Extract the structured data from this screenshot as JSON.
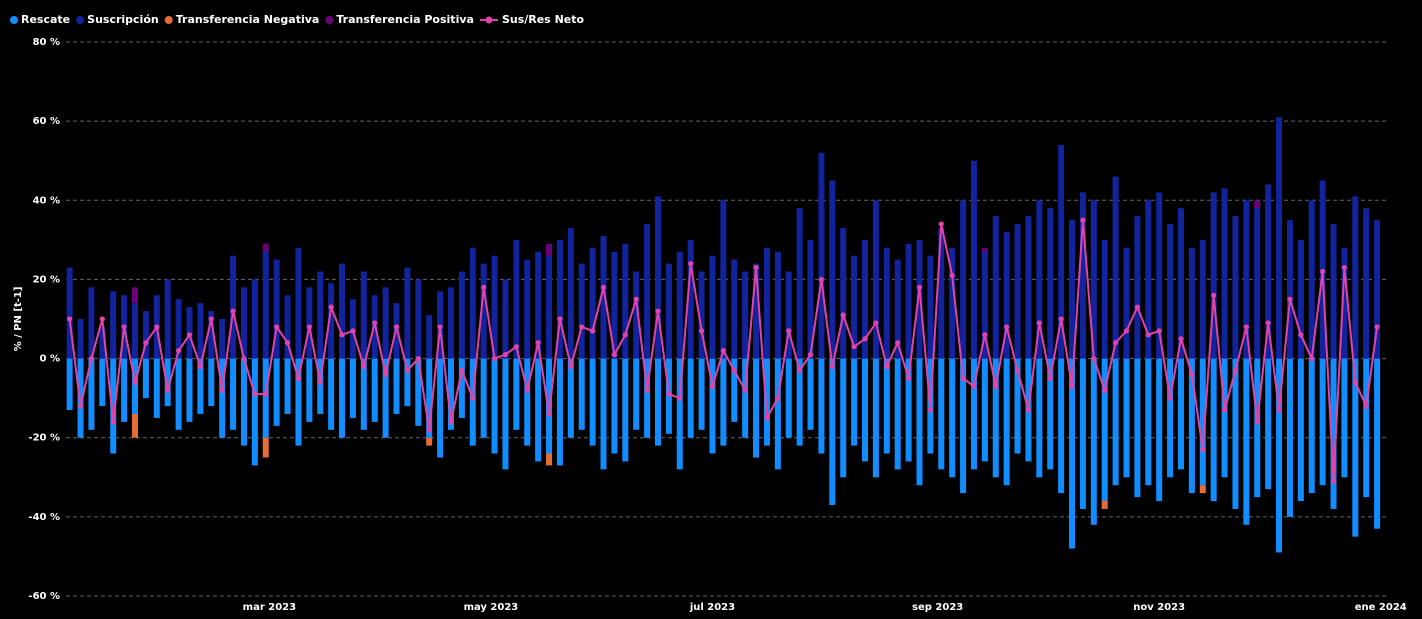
{
  "chart_data": {
    "type": "combo",
    "y_label": "% / PN [t-1]",
    "grid": true,
    "legend": "top-left",
    "xlim": [
      3,
      367
    ],
    "xticks": [
      {
        "value": 59,
        "label": "mar 2023"
      },
      {
        "value": 120,
        "label": "may 2023"
      },
      {
        "value": 181,
        "label": "jul 2023"
      },
      {
        "value": 243,
        "label": "sep 2023"
      },
      {
        "value": 304,
        "label": "nov 2023"
      },
      {
        "value": 365,
        "label": "ene 2024"
      }
    ],
    "ylim": [
      -60,
      80
    ],
    "yticks": [
      {
        "value": -60,
        "label": "-60 %"
      },
      {
        "value": -40,
        "label": "-40 %"
      },
      {
        "value": -20,
        "label": "-20 %"
      },
      {
        "value": 0,
        "label": "0 %"
      },
      {
        "value": 20,
        "label": "20 %"
      },
      {
        "value": 40,
        "label": "40 %"
      },
      {
        "value": 60,
        "label": "60 %"
      },
      {
        "value": 80,
        "label": "80 %"
      }
    ],
    "x": [
      4,
      7,
      10,
      13,
      16,
      19,
      22,
      25,
      28,
      31,
      34,
      37,
      40,
      43,
      46,
      49,
      52,
      55,
      58,
      61,
      64,
      67,
      70,
      73,
      76,
      79,
      82,
      85,
      88,
      91,
      94,
      97,
      100,
      103,
      106,
      109,
      112,
      115,
      118,
      121,
      124,
      127,
      130,
      133,
      136,
      139,
      142,
      145,
      148,
      151,
      154,
      157,
      160,
      163,
      166,
      169,
      172,
      175,
      178,
      181,
      184,
      187,
      190,
      193,
      196,
      199,
      202,
      205,
      208,
      211,
      214,
      217,
      220,
      223,
      226,
      229,
      232,
      235,
      238,
      241,
      244,
      247,
      250,
      253,
      256,
      259,
      262,
      265,
      268,
      271,
      274,
      277,
      280,
      283,
      286,
      289,
      292,
      295,
      298,
      301,
      304,
      307,
      310,
      313,
      316,
      319,
      322,
      325,
      328,
      331,
      334,
      337,
      340,
      343,
      346,
      349,
      352,
      355,
      358,
      361,
      364
    ],
    "series": [
      {
        "name": "Rescate",
        "kind": "bar",
        "color": "#118dff",
        "values": [
          -13,
          -20,
          -18,
          -12,
          -24,
          -16,
          -14,
          -10,
          -15,
          -12,
          -18,
          -16,
          -14,
          -12,
          -20,
          -18,
          -22,
          -27,
          -20,
          -17,
          -14,
          -22,
          -16,
          -14,
          -18,
          -20,
          -15,
          -18,
          -16,
          -20,
          -14,
          -12,
          -17,
          -20,
          -25,
          -18,
          -15,
          -22,
          -20,
          -24,
          -28,
          -18,
          -22,
          -26,
          -24,
          -27,
          -20,
          -18,
          -22,
          -28,
          -24,
          -26,
          -18,
          -20,
          -22,
          -19,
          -28,
          -20,
          -18,
          -24,
          -22,
          -16,
          -20,
          -25,
          -22,
          -28,
          -20,
          -22,
          -18,
          -24,
          -37,
          -30,
          -22,
          -26,
          -30,
          -24,
          -28,
          -26,
          -32,
          -24,
          -28,
          -30,
          -34,
          -28,
          -26,
          -30,
          -32,
          -24,
          -26,
          -30,
          -28,
          -34,
          -48,
          -38,
          -42,
          -36,
          -32,
          -30,
          -35,
          -32,
          -36,
          -30,
          -28,
          -34,
          -32,
          -36,
          -30,
          -38,
          -42,
          -35,
          -33,
          -49,
          -40,
          -36,
          -34,
          -32,
          -38,
          -30,
          -45,
          -35,
          -43
        ]
      },
      {
        "name": "Suscripción",
        "kind": "bar",
        "color": "#12239e",
        "values": [
          23,
          10,
          18,
          8,
          17,
          16,
          14,
          12,
          16,
          20,
          15,
          13,
          14,
          12,
          10,
          26,
          18,
          20,
          27,
          25,
          16,
          28,
          18,
          22,
          19,
          24,
          15,
          22,
          16,
          18,
          14,
          23,
          20,
          11,
          17,
          18,
          22,
          28,
          24,
          26,
          20,
          30,
          25,
          27,
          26,
          30,
          33,
          24,
          28,
          31,
          27,
          29,
          22,
          34,
          41,
          24,
          27,
          30,
          22,
          26,
          40,
          25,
          22,
          24,
          28,
          27,
          22,
          38,
          30,
          52,
          45,
          33,
          26,
          30,
          40,
          28,
          25,
          29,
          30,
          26,
          33,
          28,
          40,
          50,
          27,
          36,
          32,
          34,
          36,
          40,
          38,
          54,
          35,
          42,
          40,
          30,
          46,
          28,
          36,
          40,
          42,
          34,
          38,
          28,
          30,
          42,
          43,
          36,
          40,
          38,
          44,
          61,
          35,
          30,
          40,
          45,
          34,
          28,
          41,
          38,
          35
        ]
      },
      {
        "name": "Transferencia Negativa",
        "kind": "bar",
        "color": "#e66c37",
        "values": [
          0,
          0,
          0,
          0,
          0,
          0,
          -6,
          0,
          0,
          0,
          0,
          0,
          0,
          0,
          0,
          0,
          0,
          0,
          -5,
          0,
          0,
          0,
          0,
          0,
          0,
          0,
          0,
          0,
          0,
          0,
          0,
          0,
          0,
          -2,
          0,
          0,
          0,
          0,
          0,
          0,
          0,
          0,
          0,
          0,
          -3,
          0,
          0,
          0,
          0,
          0,
          0,
          0,
          0,
          0,
          0,
          0,
          0,
          0,
          0,
          0,
          0,
          0,
          0,
          0,
          0,
          0,
          0,
          0,
          0,
          0,
          0,
          0,
          0,
          0,
          0,
          0,
          0,
          0,
          0,
          0,
          0,
          0,
          0,
          0,
          0,
          0,
          0,
          0,
          0,
          0,
          0,
          0,
          0,
          0,
          0,
          -2,
          0,
          0,
          0,
          0,
          0,
          0,
          0,
          0,
          -2,
          0,
          0,
          0,
          0,
          0,
          0,
          0,
          0,
          0,
          0,
          0,
          0,
          0,
          0,
          0,
          0
        ]
      },
      {
        "name": "Transferencia Positiva",
        "kind": "bar",
        "color": "#6b007b",
        "values": [
          0,
          0,
          0,
          0,
          0,
          0,
          4,
          0,
          0,
          0,
          0,
          0,
          0,
          0,
          0,
          0,
          0,
          0,
          2,
          0,
          0,
          0,
          0,
          0,
          0,
          0,
          0,
          0,
          0,
          0,
          0,
          0,
          0,
          0,
          0,
          0,
          0,
          0,
          0,
          0,
          0,
          0,
          0,
          0,
          3,
          0,
          0,
          0,
          0,
          0,
          0,
          0,
          0,
          0,
          0,
          0,
          0,
          0,
          0,
          0,
          0,
          0,
          0,
          0,
          0,
          0,
          0,
          0,
          0,
          0,
          0,
          0,
          0,
          0,
          0,
          0,
          0,
          0,
          0,
          0,
          0,
          0,
          0,
          0,
          1,
          0,
          0,
          0,
          0,
          0,
          0,
          0,
          0,
          0,
          0,
          0,
          0,
          0,
          0,
          0,
          0,
          0,
          0,
          0,
          0,
          0,
          0,
          0,
          0,
          2,
          0,
          0,
          0,
          0,
          0,
          0,
          0,
          0,
          0,
          0,
          0
        ]
      },
      {
        "name": "Sus/Res Neto",
        "kind": "line",
        "color": "#e044a7",
        "values": [
          10,
          -12,
          0,
          10,
          -16,
          8,
          -6,
          4,
          8,
          -8,
          2,
          6,
          -2,
          10,
          -8,
          12,
          0,
          -9,
          -9,
          8,
          4,
          -5,
          8,
          -6,
          13,
          6,
          7,
          -2,
          9,
          -4,
          8,
          -3,
          0,
          -18,
          8,
          -16,
          -3,
          -10,
          18,
          0,
          1,
          3,
          -8,
          4,
          -14,
          10,
          -2,
          8,
          7,
          18,
          1,
          6,
          15,
          -8,
          12,
          -9,
          -10,
          24,
          7,
          -7,
          2,
          -3,
          -8,
          23,
          -15,
          -10,
          7,
          -3,
          1,
          20,
          -2,
          11,
          3,
          5,
          9,
          -2,
          4,
          -5,
          18,
          -13,
          34,
          21,
          -5,
          -7,
          6,
          -7,
          8,
          -3,
          -13,
          9,
          -5,
          10,
          -7,
          35,
          0,
          -8,
          4,
          7,
          13,
          6,
          7,
          -10,
          5,
          -4,
          -23,
          16,
          -13,
          -3,
          8,
          -16,
          9,
          -13,
          15,
          6,
          0,
          22,
          -31,
          23,
          -6,
          -12,
          8
        ]
      }
    ]
  }
}
